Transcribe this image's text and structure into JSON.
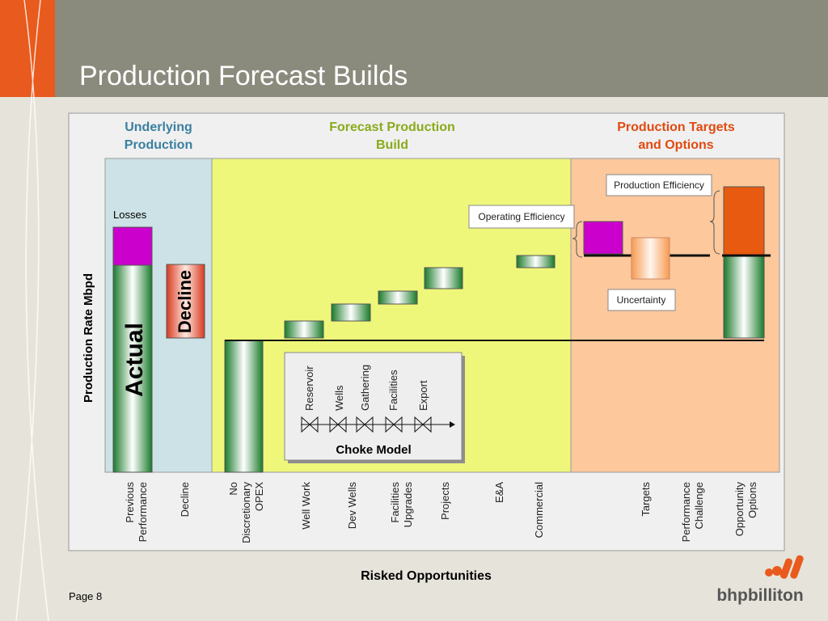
{
  "header": {
    "title": "Production Forecast Builds",
    "page": "Page 8",
    "logo": "bhpbilliton"
  },
  "sections": [
    "Underlying\nProduction",
    "Forecast Production\nBuild",
    "Production Targets\nand Options"
  ],
  "y_axis_label": "Production Rate Mbpd",
  "x_labels": [
    [
      "Previous",
      "Performance"
    ],
    [
      "Decline"
    ],
    [
      "No",
      "Discretionary",
      "OPEX"
    ],
    [
      "Well Work"
    ],
    [
      "Dev Wells"
    ],
    [
      "Facilities",
      "Upgrades"
    ],
    [
      "Projects"
    ],
    [
      "E&A"
    ],
    [
      "Commercial"
    ],
    [
      "Targets"
    ],
    [
      "Performance",
      "Challenge"
    ],
    [
      "Opportunity",
      "Options"
    ]
  ],
  "x_axis_label": "Risked Opportunities",
  "annotations": {
    "losses": "Losses",
    "actual": "Actual",
    "decline": "Decline",
    "operating_efficiency": "Operating Efficiency",
    "production_efficiency": "Production Efficiency",
    "uncertainty": "Uncertainty"
  },
  "choke_model": {
    "title": "Choke Model",
    "stages": [
      "Reservoir",
      "Wells",
      "Gathering",
      "Facilities",
      "Export"
    ]
  }
}
